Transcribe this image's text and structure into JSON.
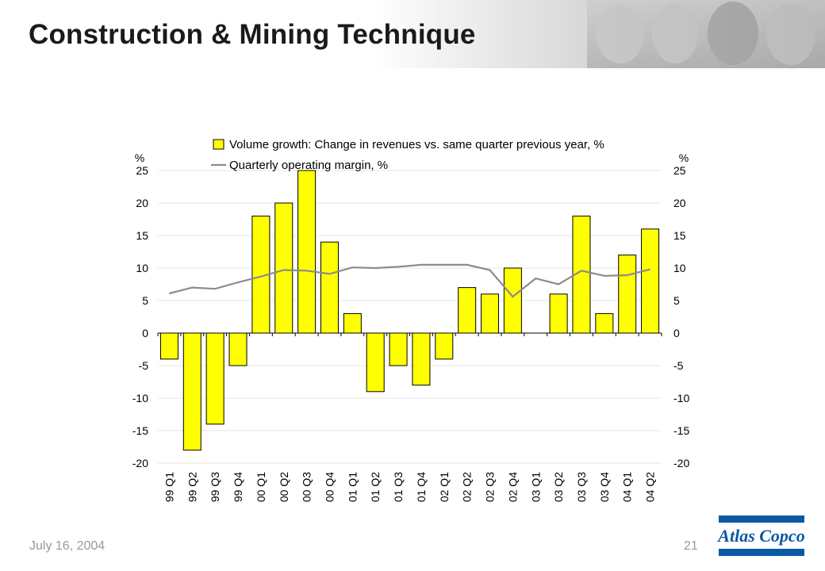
{
  "slide": {
    "title": "Construction & Mining Technique",
    "date": "July 16, 2004",
    "page_number": "21",
    "logo_text": "Atlas Copco"
  },
  "colors": {
    "bar_fill": "#ffff00",
    "bar_stroke": "#000000",
    "line": "#8c8c8c",
    "gridline": "#e6e6e6",
    "logo_blue": "#0a59a3"
  },
  "chart_data": {
    "type": "bar",
    "categories": [
      "99 Q1",
      "99 Q2",
      "99 Q3",
      "99 Q4",
      "00 Q1",
      "00 Q2",
      "00 Q3",
      "00 Q4",
      "01 Q1",
      "01 Q2",
      "01 Q3",
      "01 Q4",
      "02 Q1",
      "02 Q2",
      "02 Q3",
      "02 Q4",
      "03 Q1",
      "03 Q2",
      "03 Q3",
      "03 Q4",
      "04 Q1",
      "04 Q2"
    ],
    "series": [
      {
        "name": "Volume growth: Change in revenues vs. same quarter previous year, %",
        "type": "bar",
        "axis": "left",
        "values": [
          -4,
          -18,
          -14,
          -5,
          18,
          20,
          25,
          14,
          3,
          -9,
          -5,
          -8,
          -4,
          7,
          6,
          10,
          0,
          6,
          18,
          3,
          12,
          16
        ]
      },
      {
        "name": "Quarterly operating margin, %",
        "type": "line",
        "axis": "right",
        "values": [
          6.1,
          7.0,
          6.8,
          7.8,
          8.7,
          9.7,
          9.6,
          9.1,
          10.1,
          10.0,
          10.2,
          10.5,
          10.5,
          10.5,
          9.7,
          5.6,
          8.4,
          7.5,
          9.6,
          8.8,
          8.9,
          9.8
        ]
      }
    ],
    "ylabel_left": "%",
    "ylabel_right": "%",
    "ylim": [
      -20,
      25
    ],
    "yticks": [
      -20,
      -15,
      -10,
      -5,
      0,
      5,
      10,
      15,
      20,
      25
    ],
    "legend_position": "top",
    "grid": true
  }
}
